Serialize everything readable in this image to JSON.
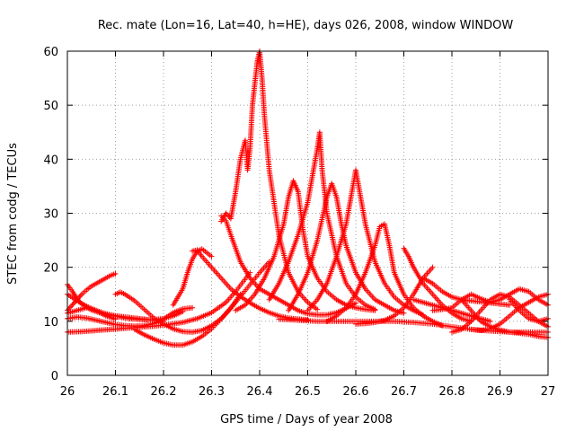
{
  "chart_data": {
    "type": "scatter",
    "title": "Rec. mate (Lon=16, Lat=40, h=HE), days 026, 2008, window WINDOW",
    "xlabel": "GPS time / Days of year 2008",
    "ylabel": "STEC from codg / TECUs",
    "xlim": [
      26,
      27
    ],
    "ylim": [
      0,
      60
    ],
    "xticks": [
      26,
      26.1,
      26.2,
      26.3,
      26.4,
      26.5,
      26.6,
      26.7,
      26.8,
      26.9,
      27
    ],
    "xtick_labels": [
      "26",
      "26.1",
      "26.2",
      "26.3",
      "26.4",
      "26.5",
      "26.6",
      "26.7",
      "26.8",
      "26.9",
      "27"
    ],
    "yticks": [
      0,
      10,
      20,
      30,
      40,
      50,
      60
    ],
    "ytick_labels": [
      "0",
      "10",
      "20",
      "30",
      "40",
      "50",
      "60"
    ],
    "grid": true,
    "grid_style": "dotted",
    "marker": "+",
    "series_color": "#ff0000",
    "series": [
      {
        "x": [
          26.0,
          26.01,
          26.02,
          26.03,
          26.04,
          26.05,
          26.06,
          26.07,
          26.08,
          26.09,
          26.1
        ],
        "values": [
          12.0,
          13.0,
          14.0,
          15.0,
          15.8,
          16.5,
          17.0,
          17.5,
          18.0,
          18.5,
          18.8
        ]
      },
      {
        "x": [
          26.0,
          26.01,
          26.02,
          26.03,
          26.04,
          26.05,
          26.06,
          26.07,
          26.08,
          26.09,
          26.1,
          26.11,
          26.12,
          26.13,
          26.14,
          26.15,
          26.16,
          26.17,
          26.18,
          26.19,
          26.2
        ],
        "values": [
          16.8,
          15.6,
          14.2,
          13.2,
          12.6,
          12.1,
          11.8,
          11.5,
          11.3,
          11.1,
          11.0,
          10.9,
          10.8,
          10.7,
          10.6,
          10.5,
          10.4,
          10.3,
          10.2,
          10.1,
          10.0
        ]
      },
      {
        "x": [
          26.0,
          26.02,
          26.04,
          26.06,
          26.08,
          26.1,
          26.12,
          26.14,
          26.16,
          26.18,
          26.2,
          26.22,
          26.24
        ],
        "values": [
          15.0,
          13.8,
          12.8,
          12.0,
          11.4,
          11.0,
          10.6,
          10.4,
          10.3,
          10.3,
          10.5,
          11.0,
          11.8
        ]
      },
      {
        "x": [
          26.0,
          26.02,
          26.04,
          26.06,
          26.08,
          26.1,
          26.12,
          26.14,
          26.16,
          26.18,
          26.2,
          26.22,
          26.24,
          26.26
        ],
        "values": [
          10.5,
          10.8,
          10.6,
          10.2,
          9.8,
          9.4,
          9.2,
          9.1,
          9.2,
          9.6,
          10.4,
          11.6,
          12.3,
          12.5
        ]
      },
      {
        "x": [
          26.0,
          26.03,
          26.06,
          26.09,
          26.12,
          26.15,
          26.18,
          26.21,
          26.24,
          26.27,
          26.3,
          26.33,
          26.35,
          26.38
        ],
        "values": [
          8.0,
          8.1,
          8.3,
          8.5,
          8.7,
          8.9,
          9.1,
          9.4,
          9.8,
          10.5,
          11.6,
          13.5,
          15.5,
          19.0
        ]
      },
      {
        "x": [
          26.0,
          26.02,
          26.04,
          26.06,
          26.08,
          26.1
        ],
        "values": [
          11.5,
          12.0,
          12.5,
          12.0,
          11.0,
          10.4
        ]
      },
      {
        "x": [
          26.1,
          26.11,
          26.12,
          26.13,
          26.14,
          26.15,
          26.16,
          26.17,
          26.18,
          26.2,
          26.22,
          26.24,
          26.26,
          26.28,
          26.3,
          26.32,
          26.34,
          26.36
        ],
        "values": [
          15.0,
          15.4,
          15.0,
          14.4,
          13.8,
          13.0,
          12.2,
          11.4,
          10.6,
          9.5,
          8.6,
          8.1,
          8.0,
          8.3,
          9.2,
          10.5,
          12.5,
          15.0
        ]
      },
      {
        "x": [
          26.14,
          26.16,
          26.18,
          26.2,
          26.22,
          26.24,
          26.26,
          26.28,
          26.3,
          26.32,
          26.34,
          26.36,
          26.38,
          26.4,
          26.42
        ],
        "values": [
          8.5,
          7.5,
          6.7,
          6.0,
          5.6,
          5.6,
          6.2,
          7.2,
          8.6,
          10.4,
          12.4,
          14.6,
          16.8,
          19.0,
          21.0
        ]
      },
      {
        "x": [
          26.26,
          26.27,
          26.28,
          26.3,
          26.32,
          26.34,
          26.36,
          26.38,
          26.4,
          26.42,
          26.44,
          26.46,
          26.48,
          26.5
        ],
        "values": [
          23.0,
          23.2,
          22.0,
          20.0,
          18.0,
          16.0,
          14.6,
          13.4,
          12.4,
          11.6,
          11.0,
          10.6,
          10.4,
          10.3
        ]
      },
      {
        "x": [
          26.22,
          26.24,
          26.25,
          26.26,
          26.27,
          26.28,
          26.3
        ],
        "values": [
          13.0,
          16.0,
          19.0,
          21.5,
          23.0,
          23.4,
          22.0
        ]
      },
      {
        "x": [
          26.32,
          26.33,
          26.34,
          26.35,
          26.36,
          26.37,
          26.375,
          26.38,
          26.385,
          26.39,
          26.395,
          26.4,
          26.405,
          26.41,
          26.42,
          26.44,
          26.46,
          26.48,
          26.5,
          26.52
        ],
        "values": [
          28.5,
          30.0,
          29.0,
          34.0,
          40.0,
          43.5,
          38.0,
          42.0,
          50.0,
          54.0,
          58.0,
          60.0,
          55.0,
          48.0,
          38.0,
          26.0,
          19.0,
          15.5,
          13.5,
          12.2
        ]
      },
      {
        "x": [
          26.32,
          26.33,
          26.34,
          26.36,
          26.38,
          26.4,
          26.42,
          26.44,
          26.46,
          26.48,
          26.5,
          26.52,
          26.54,
          26.56,
          26.58,
          26.6
        ],
        "values": [
          29.5,
          28.6,
          26.0,
          21.0,
          18.0,
          16.0,
          15.0,
          14.0,
          13.0,
          12.0,
          11.4,
          11.2,
          11.2,
          11.6,
          12.4,
          13.4
        ]
      },
      {
        "x": [
          26.35,
          26.37,
          26.39,
          26.41,
          26.43,
          26.45,
          26.46,
          26.47,
          26.48,
          26.49,
          26.5,
          26.52,
          26.54,
          26.56,
          26.58,
          26.6,
          26.62,
          26.64
        ],
        "values": [
          12.0,
          13.0,
          15.0,
          18.0,
          22.0,
          28.0,
          33.0,
          36.0,
          34.0,
          27.0,
          22.0,
          18.0,
          15.5,
          14.0,
          13.0,
          12.5,
          12.2,
          12.0
        ]
      },
      {
        "x": [
          26.42,
          26.44,
          26.46,
          26.48,
          26.5,
          26.51,
          26.52,
          26.525,
          26.53,
          26.54,
          26.56,
          26.58,
          26.6,
          26.62,
          26.64
        ],
        "values": [
          14.0,
          17.0,
          21.0,
          26.0,
          32.0,
          37.0,
          42.0,
          45.0,
          38.0,
          30.0,
          22.0,
          17.0,
          14.5,
          13.0,
          12.2
        ]
      },
      {
        "x": [
          26.46,
          26.48,
          26.5,
          26.52,
          26.54,
          26.55,
          26.56,
          26.57,
          26.58,
          26.6,
          26.62,
          26.64,
          26.66,
          26.68,
          26.7
        ],
        "values": [
          12.0,
          15.0,
          19.0,
          25.0,
          33.0,
          35.5,
          33.0,
          28.0,
          24.0,
          19.0,
          16.0,
          14.0,
          13.0,
          12.0,
          11.5
        ]
      },
      {
        "x": [
          26.5,
          26.52,
          26.54,
          26.56,
          26.58,
          26.59,
          26.6,
          26.61,
          26.62,
          26.64,
          26.66,
          26.68,
          26.7,
          26.72,
          26.74
        ],
        "values": [
          12.0,
          14.0,
          17.0,
          22.0,
          28.0,
          33.0,
          38.0,
          33.0,
          28.0,
          21.0,
          17.0,
          14.5,
          13.0,
          12.0,
          11.2
        ]
      },
      {
        "x": [
          26.54,
          26.56,
          26.58,
          26.6,
          26.62,
          26.64,
          26.65,
          26.66,
          26.67,
          26.68,
          26.7,
          26.72,
          26.74,
          26.76,
          26.78
        ],
        "values": [
          10.0,
          11.0,
          12.5,
          15.0,
          19.0,
          24.0,
          27.5,
          28.0,
          24.0,
          19.0,
          15.0,
          12.5,
          11.0,
          10.0,
          9.2
        ]
      },
      {
        "x": [
          26.44,
          26.48,
          26.52,
          26.56,
          26.6,
          26.64,
          26.68,
          26.72,
          26.76,
          26.8,
          26.84,
          26.88,
          26.92,
          26.96,
          27.0
        ],
        "values": [
          10.4,
          10.2,
          10.0,
          10.0,
          10.0,
          10.0,
          10.0,
          9.8,
          9.5,
          9.0,
          8.5,
          8.2,
          8.0,
          8.0,
          8.0
        ]
      },
      {
        "x": [
          26.6,
          26.62,
          26.64,
          26.66,
          26.68,
          26.7,
          26.72,
          26.74,
          26.76
        ],
        "values": [
          9.5,
          9.6,
          9.8,
          10.2,
          11.0,
          12.5,
          15.0,
          18.0,
          20.0
        ]
      },
      {
        "x": [
          26.7,
          26.71,
          26.72,
          26.73,
          26.74,
          26.76,
          26.78,
          26.8,
          26.82,
          26.84
        ],
        "values": [
          23.5,
          22.0,
          20.0,
          18.5,
          17.0,
          15.0,
          13.0,
          11.5,
          10.5,
          10.0
        ]
      },
      {
        "x": [
          26.72,
          26.74,
          26.76,
          26.78,
          26.8,
          26.82,
          26.84,
          26.86,
          26.88
        ],
        "values": [
          14.0,
          13.5,
          13.0,
          12.5,
          12.0,
          11.5,
          11.0,
          10.5,
          10.0
        ]
      },
      {
        "x": [
          26.74,
          26.76,
          26.78,
          26.8,
          26.82,
          26.84,
          26.86,
          26.88,
          26.9,
          26.92
        ],
        "values": [
          18.0,
          17.0,
          15.5,
          14.5,
          14.0,
          13.8,
          13.6,
          13.4,
          13.2,
          13.0
        ]
      },
      {
        "x": [
          26.76,
          26.78,
          26.8,
          26.82,
          26.84,
          26.86,
          26.88,
          26.9,
          26.92,
          26.94,
          26.96,
          26.98,
          27.0
        ],
        "values": [
          12.0,
          12.2,
          12.5,
          14.0,
          15.0,
          14.2,
          13.5,
          14.0,
          15.0,
          16.0,
          15.5,
          14.0,
          13.0
        ]
      },
      {
        "x": [
          26.8,
          26.82,
          26.84,
          26.86,
          26.88,
          26.9,
          26.92,
          26.94,
          26.96,
          26.98,
          27.0
        ],
        "values": [
          8.0,
          8.5,
          10.0,
          12.0,
          14.0,
          15.0,
          14.5,
          13.0,
          11.5,
          10.0,
          9.0
        ]
      },
      {
        "x": [
          26.82,
          26.84,
          26.86,
          26.88,
          26.9,
          26.92,
          26.94,
          26.96,
          26.98,
          27.0
        ],
        "values": [
          14.0,
          12.0,
          10.0,
          9.0,
          8.4,
          8.0,
          7.8,
          7.6,
          7.2,
          7.0
        ]
      },
      {
        "x": [
          26.84,
          26.86,
          26.88,
          26.9,
          26.92,
          26.94,
          26.96,
          26.98,
          27.0
        ],
        "values": [
          8.5,
          8.3,
          8.6,
          9.5,
          11.0,
          12.5,
          13.5,
          14.5,
          15.0
        ]
      },
      {
        "x": [
          26.92,
          26.94,
          26.96,
          26.98,
          27.0
        ],
        "values": [
          14.0,
          12.0,
          10.5,
          10.0,
          10.5
        ]
      }
    ]
  }
}
